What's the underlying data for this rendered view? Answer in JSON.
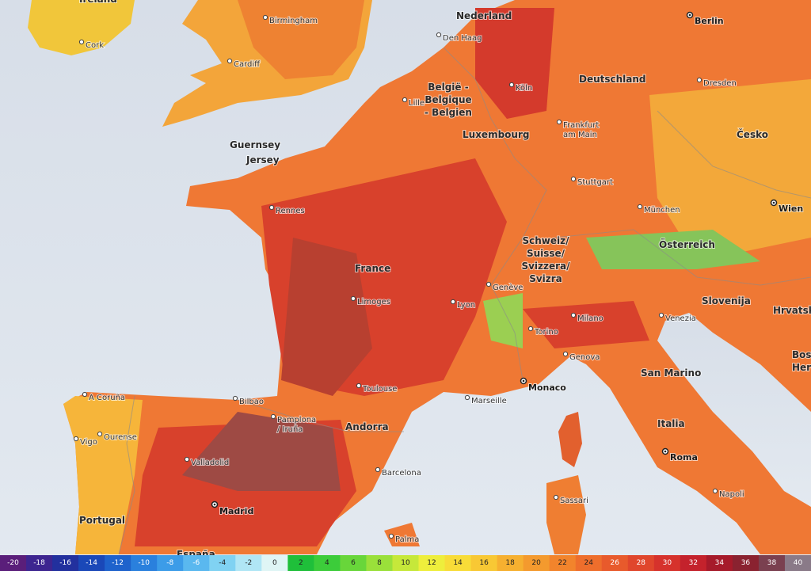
{
  "map": {
    "countries": [
      "Ireland",
      "Nederland",
      [
        "België -",
        "Belgique",
        "- Belgien"
      ],
      "Deutschland",
      "Luxembourg",
      "France",
      "Česko",
      [
        "Schweiz/",
        "Suisse/",
        "Svizzera/",
        "Svizra"
      ],
      "Österreich",
      "Slovenija",
      "Hrvatska",
      [
        "Bosn",
        "Herceg"
      ],
      "San Marino",
      "Italia",
      "Andorra",
      "Portugal",
      "España",
      "Guernsey",
      "Jersey"
    ],
    "capitals": [
      "Berlin",
      "Wien",
      "Madrid",
      "Roma",
      "Monaco"
    ],
    "cities": [
      "Cork",
      "Birmingham",
      "Cardiff",
      "Den Haag",
      "Köln",
      "Lille",
      "Dresden",
      [
        "Frankfurt",
        "am Main"
      ],
      "Stuttgart",
      "München",
      "Rennes",
      "Limoges",
      "Lyon",
      "Genève",
      "Milano",
      "Torino",
      "Venezia",
      "Genova",
      "Toulouse",
      "Bilbao",
      [
        "Pamplona",
        "/ Iruña"
      ],
      "Marseille",
      "A Coruña",
      "Ourense",
      "Vigo",
      "Valladolid",
      "Barcelona",
      "Sassari",
      "Napoli",
      "Palma"
    ],
    "legend": {
      "values": [
        -20,
        -18,
        -16,
        -14,
        -12,
        -10,
        -8,
        -6,
        -4,
        -2,
        0,
        2,
        4,
        6,
        8,
        10,
        12,
        14,
        16,
        18,
        20,
        22,
        24,
        26,
        28,
        30,
        32,
        34,
        36,
        38,
        40
      ],
      "colors": [
        "#5a1e7a",
        "#3d2590",
        "#22309e",
        "#1a48b8",
        "#1e62cc",
        "#2a80dd",
        "#3c9ce8",
        "#5ab8ef",
        "#80d2f2",
        "#b0e6f5",
        "#dff5f5",
        "#1fbf3a",
        "#3ccc3a",
        "#68d63a",
        "#9ae03a",
        "#c6e83a",
        "#eeee3c",
        "#f8dc38",
        "#f8c834",
        "#f6b030",
        "#f49a2e",
        "#f2842c",
        "#ee6e2c",
        "#e85a2c",
        "#e0462c",
        "#d6322c",
        "#c4222c",
        "#a61a2a",
        "#8a2230",
        "#7a4050",
        "#8a7a88"
      ]
    }
  }
}
